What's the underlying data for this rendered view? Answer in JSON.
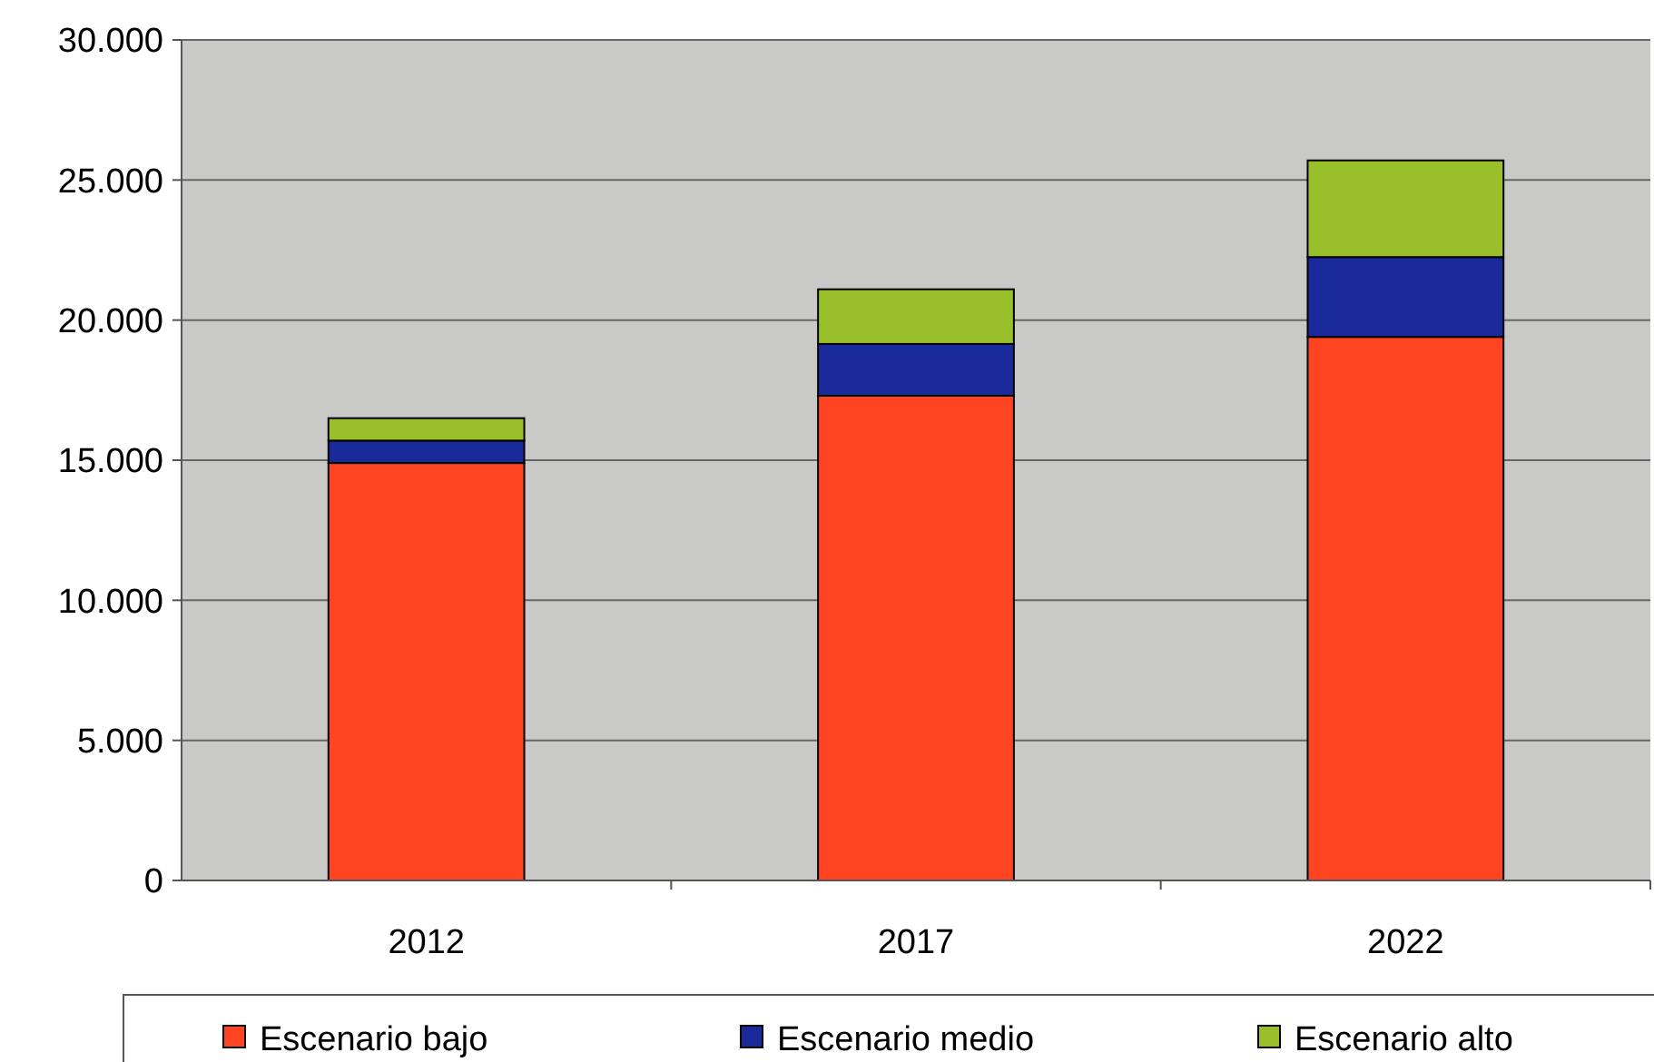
{
  "chart_data": {
    "type": "bar",
    "stacked": true,
    "categories": [
      "2012",
      "2017",
      "2022"
    ],
    "series": [
      {
        "name": "Escenario bajo",
        "color": "#ff4422",
        "values": [
          14900,
          17300,
          19400
        ]
      },
      {
        "name": "Escenario medio",
        "color": "#1a2a9a",
        "values": [
          800,
          1850,
          2850
        ]
      },
      {
        "name": "Escenario alto",
        "color": "#99c02a",
        "values": [
          800,
          1950,
          3450
        ]
      }
    ],
    "ylim": [
      0,
      30000
    ],
    "yticks": [
      {
        "value": 0,
        "label": "0"
      },
      {
        "value": 5000,
        "label": "5.000"
      },
      {
        "value": 10000,
        "label": "10.000"
      },
      {
        "value": 15000,
        "label": "15.000"
      },
      {
        "value": 20000,
        "label": "20.000"
      },
      {
        "value": 25000,
        "label": "25.000"
      },
      {
        "value": 30000,
        "label": "30.000"
      }
    ],
    "grid": "y",
    "legend": "bottom"
  }
}
